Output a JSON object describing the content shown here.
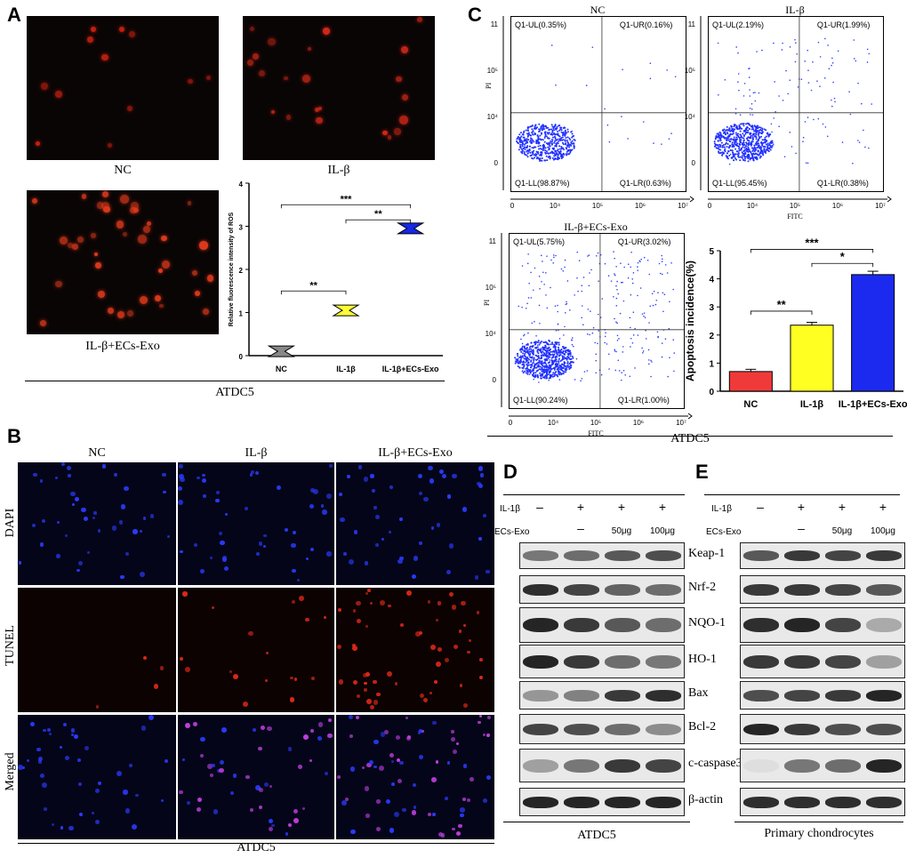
{
  "panels": {
    "A": {
      "letter": "A",
      "images": [
        {
          "label": "NC",
          "density": 12,
          "color": "#c82010"
        },
        {
          "label": "IL-β",
          "density": 22,
          "color": "#d02818"
        },
        {
          "label": "IL-β+ECs-Exo",
          "density": 40,
          "color": "#e03a1c"
        }
      ],
      "footer": "ATDC5",
      "chart_data": {
        "type": "bar",
        "ylabel": "Relative fluorescence intensity of ROS",
        "categories": [
          "NC",
          "IL-1β",
          "IL-1β+ECs-Exo"
        ],
        "values": [
          0.1,
          1.05,
          2.95
        ],
        "colors": [
          "#888888",
          "#ffff33",
          "#1428e6"
        ],
        "ylim": [
          0,
          4
        ],
        "yticks": [
          "0",
          "1",
          "2",
          "3",
          "4"
        ],
        "significance": [
          {
            "label": "**",
            "from": 0,
            "to": 1,
            "level": 1.5
          },
          {
            "label": "***",
            "from": 0,
            "to": 2,
            "level": 3.5
          },
          {
            "label": "**",
            "from": 1,
            "to": 2,
            "level": 3.15
          }
        ]
      }
    },
    "B": {
      "letter": "B",
      "columns": [
        "NC",
        "IL-β",
        "IL-β+ECs-Exo"
      ],
      "rows": [
        "DAPI",
        "TUNEL",
        "Merged"
      ],
      "footer": "ATDC5"
    },
    "C": {
      "letter": "C",
      "footer": "ATDC5",
      "flow": [
        {
          "title": "NC",
          "ul": "Q1-UL(0.35%)",
          "ur": "Q1-UR(0.16%)",
          "ll": "Q1-LL(98.87%)",
          "lr": "Q1-LR(0.63%)",
          "xticks": [
            "0",
            "10⁴",
            "10⁵",
            "10⁶",
            "10⁷"
          ],
          "yticks": [
            "11",
            "10⁵",
            "10⁴",
            "0"
          ],
          "xlabel": "",
          "ylabel": "PI"
        },
        {
          "title": "IL-β",
          "ul": "Q1-UL(2.19%)",
          "ur": "Q1-UR(1.99%)",
          "ll": "Q1-LL(95.45%)",
          "lr": "Q1-LR(0.38%)",
          "xticks": [
            "0",
            "10⁴",
            "10⁵",
            "10⁶",
            "10⁷"
          ],
          "yticks": [
            "11",
            "10⁵",
            "10⁴",
            "0"
          ],
          "xlabel": "FITC",
          "ylabel": ""
        },
        {
          "title": "IL-β+ECs-Exo",
          "ul": "Q1-UL(5.75%)",
          "ur": "Q1-UR(3.02%)",
          "ll": "Q1-LL(90.24%)",
          "lr": "Q1-LR(1.00%)",
          "xticks": [
            "0",
            "10⁴",
            "10⁵",
            "10⁶",
            "10⁷"
          ],
          "yticks": [
            "11",
            "10⁵",
            "10⁴",
            "0"
          ],
          "xlabel": "FITC",
          "ylabel": "PI"
        }
      ],
      "chart_data": {
        "type": "bar",
        "ylabel": "Apoptosis incidence(%)",
        "categories": [
          "NC",
          "IL-1β",
          "IL-1β+ECs-Exo"
        ],
        "values": [
          0.7,
          2.35,
          4.15
        ],
        "errors": [
          0.08,
          0.1,
          0.12
        ],
        "colors": [
          "#f03a3a",
          "#ffff22",
          "#1c2af0"
        ],
        "ylim": [
          0,
          5
        ],
        "yticks": [
          "0",
          "1",
          "2",
          "3",
          "4",
          "5"
        ],
        "significance": [
          {
            "label": "**",
            "from": 0,
            "to": 1,
            "level": 2.85
          },
          {
            "label": "***",
            "from": 0,
            "to": 2,
            "level": 5.05
          },
          {
            "label": "*",
            "from": 1,
            "to": 2,
            "level": 4.55
          }
        ]
      }
    },
    "D": {
      "letter": "D",
      "row1_label": "IL-1β",
      "row2_label": "ECs-Exo",
      "il1b": [
        "–",
        "+",
        "+",
        "+"
      ],
      "exo": [
        "",
        "–",
        "50μg",
        "100μg"
      ],
      "blots": [
        {
          "label": "Keap-1",
          "intensities": [
            0.55,
            0.6,
            0.7,
            0.75
          ]
        },
        {
          "label": "Nrf-2",
          "intensities": [
            0.9,
            0.8,
            0.65,
            0.6
          ]
        },
        {
          "label": "NQO-1",
          "intensities": [
            0.95,
            0.85,
            0.7,
            0.6
          ]
        },
        {
          "label": "HO-1",
          "intensities": [
            0.95,
            0.85,
            0.6,
            0.55
          ]
        },
        {
          "label": "Bax",
          "intensities": [
            0.4,
            0.5,
            0.85,
            0.9
          ]
        },
        {
          "label": "Bcl-2",
          "intensities": [
            0.8,
            0.75,
            0.6,
            0.45
          ]
        },
        {
          "label": "c-caspase3",
          "intensities": [
            0.35,
            0.55,
            0.85,
            0.8
          ]
        },
        {
          "label": "β-actin",
          "intensities": [
            0.95,
            0.95,
            0.95,
            0.95
          ]
        }
      ],
      "footer": "ATDC5"
    },
    "E": {
      "letter": "E",
      "row1_label": "IL-1β",
      "row2_label": "ECs-Exo",
      "il1b": [
        "–",
        "+",
        "+",
        "+"
      ],
      "exo": [
        "",
        "–",
        "50μg",
        "100μg"
      ],
      "blots": [
        {
          "intensities": [
            0.7,
            0.85,
            0.8,
            0.85
          ]
        },
        {
          "intensities": [
            0.85,
            0.85,
            0.8,
            0.7
          ]
        },
        {
          "intensities": [
            0.9,
            0.95,
            0.8,
            0.3
          ]
        },
        {
          "intensities": [
            0.85,
            0.85,
            0.8,
            0.35
          ]
        },
        {
          "intensities": [
            0.75,
            0.8,
            0.85,
            0.95
          ]
        },
        {
          "intensities": [
            0.95,
            0.85,
            0.75,
            0.75
          ]
        },
        {
          "intensities": [
            0.05,
            0.55,
            0.6,
            0.95
          ]
        },
        {
          "intensities": [
            0.9,
            0.9,
            0.9,
            0.9
          ]
        }
      ],
      "footer": "Primary chondrocytes"
    }
  }
}
